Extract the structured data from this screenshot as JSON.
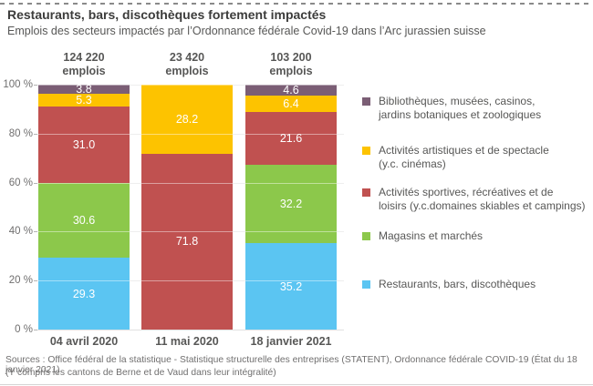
{
  "header": {
    "title": "Restaurants, bars, discothèques fortement impactés",
    "subtitle": "Emplois des secteurs impactés par l’Ordonnance fédérale Covid-19 dans l’Arc jurassien suisse"
  },
  "chart_data": {
    "type": "bar",
    "stacked": true,
    "ylim": [
      0,
      100
    ],
    "grid": true,
    "legend_position": "right",
    "categories": [
      "04 avril 2020",
      "11 mai 2020",
      "18 janvier 2021"
    ],
    "totals": [
      {
        "value": "124 220",
        "unit": "emplois"
      },
      {
        "value": "23 420",
        "unit": "emplois"
      },
      {
        "value": "103 200",
        "unit": "emplois"
      }
    ],
    "yticks": [
      {
        "label": "100 %",
        "value": 100
      },
      {
        "label": "80 %",
        "value": 80
      },
      {
        "label": "60 %",
        "value": 60
      },
      {
        "label": "40 %",
        "value": 40
      },
      {
        "label": "20 %",
        "value": 20
      },
      {
        "label": "0 %",
        "value": 0
      }
    ],
    "series": [
      {
        "name": "Restaurants, bars, discothèques",
        "color": "#5BC5F2",
        "values": [
          29.3,
          0,
          35.2
        ],
        "labels": [
          "29.3",
          "",
          "35.2"
        ]
      },
      {
        "name": "Magasins et marchés",
        "color": "#8CC84B",
        "values": [
          30.6,
          0,
          32.2
        ],
        "labels": [
          "30.6",
          "",
          "32.2"
        ]
      },
      {
        "name": "Activités sportives, récréatives et de loisirs (y.c.domaines skiables et campings)",
        "color": "#C05150",
        "values": [
          31.0,
          71.8,
          21.6
        ],
        "labels": [
          "31.0",
          "71.8",
          "21.6"
        ]
      },
      {
        "name": "Activités artistiques et de spectacle (y.c. cinémas)",
        "color": "#FDC300",
        "values": [
          5.3,
          28.2,
          6.4
        ],
        "labels": [
          "5.3",
          "28.2",
          "6.4"
        ]
      },
      {
        "name": "Bibliothèques, musées, casinos, jardins botaniques et zoologiques",
        "color": "#7B5E75",
        "values": [
          3.8,
          0,
          4.6
        ],
        "labels": [
          "3.8",
          "",
          "4.6"
        ]
      }
    ]
  },
  "legend": {
    "items": [
      {
        "label": "Bibliothèques, musées, casinos,\njardins botaniques et zoologiques",
        "color": "#7B5E75"
      },
      {
        "label": "Activités artistiques et de spectacle\n(y.c. cinémas)",
        "color": "#FDC300"
      },
      {
        "label": "Activités sportives, récréatives et de\nloisirs (y.c.domaines skiables et campings)",
        "color": "#C05150"
      },
      {
        "label": "Magasins et marchés",
        "color": "#8CC84B"
      },
      {
        "label": "Restaurants, bars, discothèques",
        "color": "#5BC5F2"
      }
    ]
  },
  "footer": {
    "line1": "Sources : Office fédéral de la statistique - Statistique structurelle des entreprises (STATENT), Ordonnance fédérale COVID-19 (État du 18 janvier 2021)",
    "line2": "(Y compris les cantons de Berne et de Vaud dans leur intégralité)"
  }
}
